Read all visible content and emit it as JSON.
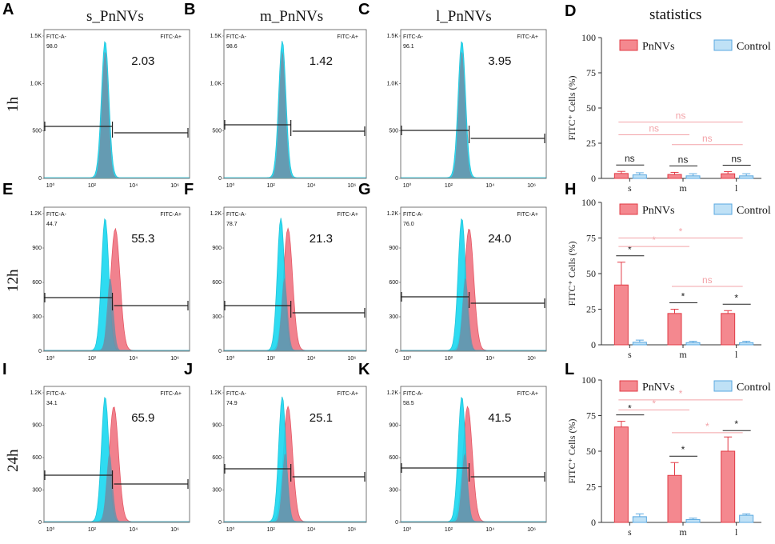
{
  "column_titles": [
    "s_PnNVs",
    "m_PnNVs",
    "l_PnNVs",
    "statistics"
  ],
  "row_titles": [
    "1h",
    "12h",
    "24h"
  ],
  "panel_letters": [
    "A",
    "B",
    "C",
    "D",
    "E",
    "F",
    "G",
    "H",
    "I",
    "J",
    "K",
    "L"
  ],
  "colors": {
    "pnnvs": "#f4888f",
    "pnnvs_edge": "#e23b46",
    "control": "#bfe1f6",
    "control_edge": "#5aa8e0",
    "histo_cyan": "#19d8f0",
    "histo_red": "#f17c88",
    "overlap": "#6e8fa7",
    "sig_faint": "#f3a3a8"
  },
  "flow": {
    "gate_neg_label": "FITC-A-",
    "gate_pos_label": "FITC-A+",
    "x_ticks": [
      "10⁰",
      "10²",
      "10⁴",
      "10⁶"
    ],
    "panels": [
      {
        "id": "A",
        "neg": "98.0",
        "pos": "2.03",
        "yticks": [
          "1.5K",
          "1.0K",
          "500",
          "0"
        ],
        "ymax": 1500
      },
      {
        "id": "B",
        "neg": "98.6",
        "pos": "1.42",
        "yticks": [
          "1.5K",
          "1.0K",
          "500",
          "0"
        ],
        "ymax": 1500
      },
      {
        "id": "C",
        "neg": "96.1",
        "pos": "3.95",
        "yticks": [
          "1.5K",
          "1.0K",
          "500",
          "0"
        ],
        "ymax": 1500
      },
      {
        "id": "E",
        "neg": "44.7",
        "pos": "55.3",
        "yticks": [
          "1.2K",
          "900",
          "600",
          "300",
          "0"
        ],
        "ymax": 1200
      },
      {
        "id": "F",
        "neg": "78.7",
        "pos": "21.3",
        "yticks": [
          "1.2K",
          "900",
          "600",
          "300",
          "0"
        ],
        "ymax": 1200
      },
      {
        "id": "G",
        "neg": "76.0",
        "pos": "24.0",
        "yticks": [
          "1.2K",
          "900",
          "600",
          "300",
          "0"
        ],
        "ymax": 1200
      },
      {
        "id": "I",
        "neg": "34.1",
        "pos": "65.9",
        "yticks": [
          "1.2K",
          "900",
          "600",
          "300",
          "0"
        ],
        "ymax": 1200
      },
      {
        "id": "J",
        "neg": "74.9",
        "pos": "25.1",
        "yticks": [
          "1.2K",
          "900",
          "600",
          "300",
          "0"
        ],
        "ymax": 1200
      },
      {
        "id": "K",
        "neg": "58.5",
        "pos": "41.5",
        "yticks": [
          "1.2K",
          "900",
          "600",
          "300",
          "0"
        ],
        "ymax": 1200
      }
    ]
  },
  "chart_data": [
    {
      "panel": "D",
      "type": "bar",
      "title": "statistics",
      "categories": [
        "s",
        "m",
        "l"
      ],
      "ylabel": "FITC⁺ Cells (%)",
      "ylim": [
        0,
        100
      ],
      "yticks": [
        0,
        25,
        50,
        75,
        100
      ],
      "legend": [
        "PnNVs",
        "Control"
      ],
      "series": [
        {
          "name": "PnNVs",
          "values": [
            3.5,
            2.8,
            3.3
          ],
          "errors": [
            1.5,
            1.5,
            1.5
          ]
        },
        {
          "name": "Control",
          "values": [
            2.5,
            1.8,
            1.8
          ],
          "errors": [
            1.5,
            1.5,
            1.5
          ]
        }
      ],
      "significance": [
        {
          "label": "ns",
          "level": "within",
          "group": 0
        },
        {
          "label": "ns",
          "level": "within",
          "group": 1
        },
        {
          "label": "ns",
          "level": "within",
          "group": 2
        },
        {
          "label": "ns",
          "from": 0,
          "to": 2,
          "y": 40,
          "faint": true
        },
        {
          "label": "ns",
          "from": 0,
          "to": 1,
          "y": 31,
          "faint": true
        },
        {
          "label": "ns",
          "from": 1,
          "to": 2,
          "y": 24,
          "faint": true
        }
      ]
    },
    {
      "panel": "H",
      "type": "bar",
      "categories": [
        "s",
        "m",
        "l"
      ],
      "ylabel": "FITC⁺ Cells (%)",
      "ylim": [
        0,
        100
      ],
      "yticks": [
        0,
        25,
        50,
        75,
        100
      ],
      "legend": [
        "PnNVs",
        "Control"
      ],
      "series": [
        {
          "name": "PnNVs",
          "values": [
            42,
            22,
            22
          ],
          "errors": [
            16,
            3,
            2
          ]
        },
        {
          "name": "Control",
          "values": [
            1.8,
            1.5,
            1.5
          ],
          "errors": [
            1.5,
            1,
            1
          ]
        }
      ],
      "significance": [
        {
          "label": "*",
          "level": "within",
          "group": 0
        },
        {
          "label": "*",
          "level": "within",
          "group": 1
        },
        {
          "label": "*",
          "level": "within",
          "group": 2
        },
        {
          "label": "*",
          "from": 0,
          "to": 2,
          "y": 75,
          "faint": true
        },
        {
          "label": "*",
          "from": 0,
          "to": 1,
          "y": 69,
          "faint": true
        },
        {
          "label": "ns",
          "from": 1,
          "to": 2,
          "y": 41,
          "faint": true
        }
      ]
    },
    {
      "panel": "L",
      "type": "bar",
      "categories": [
        "s",
        "m",
        "l"
      ],
      "ylabel": "FITC⁺ Cells (%)",
      "ylim": [
        0,
        100
      ],
      "yticks": [
        0,
        25,
        50,
        75,
        100
      ],
      "legend": [
        "PnNVs",
        "Control"
      ],
      "series": [
        {
          "name": "PnNVs",
          "values": [
            67,
            33,
            50
          ],
          "errors": [
            4,
            9,
            10
          ]
        },
        {
          "name": "Control",
          "values": [
            4,
            2,
            5
          ],
          "errors": [
            2,
            1,
            1
          ]
        }
      ],
      "significance": [
        {
          "label": "*",
          "level": "within",
          "group": 0
        },
        {
          "label": "*",
          "level": "within",
          "group": 1
        },
        {
          "label": "*",
          "level": "within",
          "group": 2
        },
        {
          "label": "*",
          "from": 0,
          "to": 2,
          "y": 86,
          "faint": true
        },
        {
          "label": "*",
          "from": 0,
          "to": 1,
          "y": 79,
          "faint": true
        },
        {
          "label": "*",
          "from": 1,
          "to": 2,
          "y": 63,
          "faint": true
        }
      ]
    }
  ]
}
